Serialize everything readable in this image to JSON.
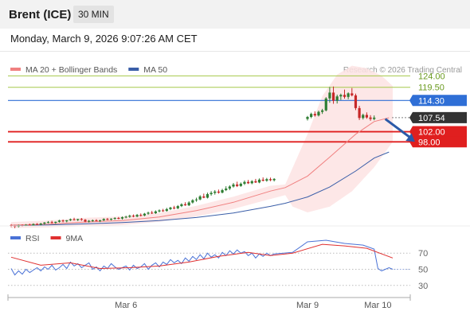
{
  "header": {
    "instrument": "Brent (ICE)",
    "timeframe": "30 MIN"
  },
  "timestamp": "Monday, March 9, 2026 9:07:26 AM CET",
  "colors": {
    "candle_up": "#2e7d32",
    "candle_down": "#c62828",
    "ma20": "#f08080",
    "ma50": "#3a5ea8",
    "bollinger_fill": "#fde3e3",
    "resistance": "#a5c94a",
    "pivot": "#2f6fd6",
    "support": "#e01f1f",
    "last_price": "#333333",
    "rsi": "#4a72d6",
    "rsi_ma": "#e03030",
    "arrow": "#2b5aa8"
  },
  "chart_data": [
    {
      "type": "candlestick",
      "legend": [
        {
          "name": "MA 20 + Bollinger Bands",
          "color": "#f08080"
        },
        {
          "name": "MA 50",
          "color": "#3a5ea8"
        }
      ],
      "credit": "Research © 2026 Trading Central",
      "ylim": [
        63,
        131
      ],
      "x_ticks": [
        {
          "label": "Mar 6",
          "index": 31
        },
        {
          "label": "Mar 9",
          "index": 80
        },
        {
          "label": "Mar 10",
          "index": 99
        }
      ],
      "levels": [
        {
          "label": "124.00",
          "value": 124.0,
          "kind": "resistance"
        },
        {
          "label": "119.50",
          "value": 119.5,
          "kind": "resistance"
        },
        {
          "label": "114.30",
          "value": 114.3,
          "kind": "pivot"
        },
        {
          "label": "107.54",
          "value": 107.54,
          "kind": "last"
        },
        {
          "label": "102.00",
          "value": 102.0,
          "kind": "support"
        },
        {
          "label": "98.00",
          "value": 98.0,
          "kind": "support"
        }
      ],
      "ohlc": [
        [
          65.2,
          65.6,
          64.4,
          64.9
        ],
        [
          64.9,
          65.3,
          64.0,
          64.6
        ],
        [
          64.6,
          65.4,
          64.3,
          65.1
        ],
        [
          65.1,
          65.5,
          64.6,
          64.9
        ],
        [
          64.9,
          65.6,
          64.7,
          65.3
        ],
        [
          65.3,
          65.8,
          64.9,
          65.1
        ],
        [
          65.1,
          65.9,
          64.9,
          65.6
        ],
        [
          65.6,
          66.0,
          65.2,
          65.4
        ],
        [
          65.4,
          66.1,
          65.1,
          65.8
        ],
        [
          65.8,
          66.4,
          65.4,
          66.2
        ],
        [
          66.2,
          66.8,
          65.9,
          66.4
        ],
        [
          66.4,
          66.9,
          65.8,
          66.1
        ],
        [
          66.1,
          66.6,
          65.7,
          66.5
        ],
        [
          66.5,
          67.3,
          66.2,
          67.0
        ],
        [
          67.0,
          67.4,
          66.3,
          66.7
        ],
        [
          66.7,
          67.2,
          66.3,
          67.1
        ],
        [
          67.1,
          67.8,
          66.8,
          67.5
        ],
        [
          67.5,
          68.1,
          67.0,
          67.2
        ],
        [
          67.2,
          67.7,
          66.8,
          67.6
        ],
        [
          67.6,
          68.0,
          66.9,
          67.3
        ],
        [
          67.3,
          67.6,
          66.3,
          66.6
        ],
        [
          66.6,
          67.2,
          66.2,
          66.9
        ],
        [
          66.9,
          67.4,
          66.5,
          67.1
        ],
        [
          67.1,
          67.5,
          66.7,
          66.9
        ],
        [
          66.9,
          67.3,
          66.4,
          67.1
        ],
        [
          67.1,
          67.9,
          66.8,
          67.6
        ],
        [
          67.6,
          68.0,
          67.1,
          67.4
        ],
        [
          67.4,
          67.9,
          67.0,
          67.7
        ],
        [
          67.7,
          68.3,
          67.3,
          68.0
        ],
        [
          68.0,
          68.4,
          67.5,
          67.8
        ],
        [
          67.8,
          68.6,
          67.4,
          68.3
        ],
        [
          68.3,
          68.9,
          67.9,
          68.5
        ],
        [
          68.5,
          69.3,
          68.1,
          68.9
        ],
        [
          68.9,
          69.4,
          68.3,
          68.6
        ],
        [
          68.6,
          69.6,
          68.3,
          69.2
        ],
        [
          69.2,
          69.8,
          68.6,
          69.0
        ],
        [
          69.0,
          70.0,
          68.7,
          69.7
        ],
        [
          69.7,
          70.5,
          69.3,
          70.1
        ],
        [
          70.1,
          70.8,
          69.6,
          69.9
        ],
        [
          69.9,
          71.0,
          69.6,
          70.6
        ],
        [
          70.6,
          71.4,
          70.2,
          71.0
        ],
        [
          71.0,
          71.6,
          70.4,
          70.8
        ],
        [
          70.8,
          72.0,
          70.5,
          71.5
        ],
        [
          71.5,
          72.4,
          71.1,
          72.1
        ],
        [
          72.1,
          72.8,
          71.4,
          71.8
        ],
        [
          71.8,
          73.1,
          71.5,
          72.7
        ],
        [
          72.7,
          73.8,
          72.3,
          73.4
        ],
        [
          73.4,
          74.2,
          72.8,
          73.0
        ],
        [
          73.0,
          74.6,
          72.7,
          74.1
        ],
        [
          74.1,
          75.4,
          73.7,
          75.0
        ],
        [
          75.0,
          76.0,
          74.4,
          75.3
        ],
        [
          75.3,
          77.0,
          75.0,
          76.5
        ],
        [
          76.5,
          77.6,
          75.8,
          76.0
        ],
        [
          76.0,
          78.0,
          75.7,
          77.4
        ],
        [
          77.4,
          78.6,
          76.8,
          77.9
        ],
        [
          77.9,
          79.0,
          77.2,
          78.4
        ],
        [
          78.4,
          79.2,
          77.6,
          78.0
        ],
        [
          78.0,
          79.5,
          77.7,
          79.0
        ],
        [
          79.0,
          80.5,
          78.6,
          79.6
        ],
        [
          79.6,
          80.9,
          79.0,
          80.4
        ],
        [
          80.4,
          81.8,
          80.0,
          81.2
        ],
        [
          81.2,
          82.3,
          80.2,
          80.6
        ],
        [
          80.6,
          82.0,
          80.3,
          81.5
        ],
        [
          81.5,
          82.8,
          81.0,
          82.2
        ],
        [
          82.2,
          83.0,
          81.4,
          81.7
        ],
        [
          81.7,
          82.9,
          81.3,
          82.5
        ],
        [
          82.5,
          83.4,
          81.8,
          82.0
        ],
        [
          82.0,
          83.6,
          81.7,
          83.1
        ],
        [
          83.1,
          84.0,
          82.4,
          82.7
        ],
        [
          82.7,
          83.8,
          82.3,
          83.3
        ],
        [
          83.3,
          83.9,
          82.5,
          82.9
        ],
        [
          82.9,
          83.7,
          82.4,
          83.4
        ],
        [
          null,
          null,
          null,
          null
        ],
        [
          null,
          null,
          null,
          null
        ],
        [
          null,
          null,
          null,
          null
        ],
        [
          null,
          null,
          null,
          null
        ],
        [
          null,
          null,
          null,
          null
        ],
        [
          null,
          null,
          null,
          null
        ],
        [
          null,
          null,
          null,
          null
        ],
        [
          null,
          null,
          null,
          null
        ],
        [
          107.0,
          108.2,
          106.4,
          107.8
        ],
        [
          107.8,
          109.5,
          107.3,
          109.0
        ],
        [
          109.0,
          110.0,
          107.9,
          108.4
        ],
        [
          108.4,
          110.3,
          108.0,
          109.8
        ],
        [
          109.8,
          111.0,
          109.0,
          110.4
        ],
        [
          110.4,
          115.6,
          110.0,
          115.1
        ],
        [
          115.1,
          119.6,
          113.4,
          117.4
        ],
        [
          117.4,
          119.8,
          113.0,
          114.2
        ],
        [
          114.2,
          116.6,
          113.1,
          115.9
        ],
        [
          115.9,
          117.0,
          114.5,
          116.5
        ],
        [
          116.5,
          118.6,
          115.0,
          115.7
        ],
        [
          115.7,
          117.5,
          114.8,
          117.1
        ],
        [
          117.1,
          119.2,
          115.9,
          116.3
        ],
        [
          116.3,
          117.0,
          110.5,
          111.3
        ],
        [
          111.3,
          112.2,
          106.6,
          107.4
        ],
        [
          107.4,
          109.1,
          106.8,
          108.6
        ],
        [
          108.6,
          109.6,
          107.1,
          107.6
        ],
        [
          107.6,
          108.5,
          106.3,
          107.0
        ],
        [
          107.0,
          108.4,
          106.5,
          107.54
        ]
      ],
      "ma20": [
        [
          0,
          65.2
        ],
        [
          10,
          65.6
        ],
        [
          20,
          66.4
        ],
        [
          30,
          67.0
        ],
        [
          40,
          68.4
        ],
        [
          50,
          70.9
        ],
        [
          60,
          74.2
        ],
        [
          70,
          78.6
        ],
        [
          74,
          80.0
        ],
        [
          80,
          84.5
        ],
        [
          86,
          92.0
        ],
        [
          93,
          101.0
        ],
        [
          98,
          106.0
        ],
        [
          102,
          107.5
        ]
      ],
      "ma50": [
        [
          0,
          65.1
        ],
        [
          10,
          65.3
        ],
        [
          20,
          65.7
        ],
        [
          30,
          66.2
        ],
        [
          40,
          67.0
        ],
        [
          50,
          68.2
        ],
        [
          60,
          70.0
        ],
        [
          70,
          72.6
        ],
        [
          74,
          73.8
        ],
        [
          80,
          76.3
        ],
        [
          86,
          80.2
        ],
        [
          93,
          86.5
        ],
        [
          98,
          91.6
        ],
        [
          102,
          94.0
        ]
      ],
      "bb_upper": [
        [
          0,
          66.4
        ],
        [
          10,
          67.0
        ],
        [
          20,
          68.1
        ],
        [
          30,
          68.6
        ],
        [
          40,
          70.0
        ],
        [
          50,
          72.8
        ],
        [
          60,
          76.4
        ],
        [
          70,
          80.7
        ],
        [
          74,
          81.2
        ],
        [
          80,
          101.0
        ],
        [
          84,
          116.0
        ],
        [
          88,
          124.5
        ],
        [
          92,
          128.0
        ],
        [
          96,
          127.0
        ],
        [
          100,
          124.0
        ],
        [
          103,
          120.0
        ]
      ],
      "bb_lower": [
        [
          0,
          64.0
        ],
        [
          10,
          64.3
        ],
        [
          20,
          64.8
        ],
        [
          30,
          65.2
        ],
        [
          40,
          66.5
        ],
        [
          50,
          68.6
        ],
        [
          60,
          71.6
        ],
        [
          70,
          75.5
        ],
        [
          74,
          77.0
        ],
        [
          76,
          72.5
        ],
        [
          80,
          70.2
        ],
        [
          86,
          72.5
        ],
        [
          92,
          78.5
        ],
        [
          98,
          88.0
        ],
        [
          103,
          98.0
        ]
      ],
      "forecast_arrow": {
        "from": [
          101,
          107.0
        ],
        "to": [
          109,
          98.0
        ]
      }
    },
    {
      "type": "line",
      "legend": [
        {
          "name": "RSI",
          "color": "#4a72d6"
        },
        {
          "name": "9MA",
          "color": "#e03030"
        }
      ],
      "ylim": [
        15,
        85
      ],
      "levels": [
        {
          "label": "70",
          "value": 70
        },
        {
          "label": "50",
          "value": 50
        },
        {
          "label": "30",
          "value": 30
        }
      ],
      "rsi": [
        [
          0,
          51
        ],
        [
          1,
          43
        ],
        [
          2,
          48
        ],
        [
          3,
          44
        ],
        [
          4,
          50
        ],
        [
          5,
          46
        ],
        [
          6,
          49
        ],
        [
          7,
          52
        ],
        [
          8,
          48
        ],
        [
          9,
          53
        ],
        [
          10,
          50
        ],
        [
          11,
          55
        ],
        [
          12,
          49
        ],
        [
          13,
          52
        ],
        [
          14,
          56
        ],
        [
          15,
          51
        ],
        [
          16,
          59
        ],
        [
          17,
          54
        ],
        [
          18,
          57
        ],
        [
          19,
          52
        ],
        [
          20,
          55
        ],
        [
          21,
          58
        ],
        [
          22,
          50
        ],
        [
          23,
          53
        ],
        [
          24,
          48
        ],
        [
          25,
          54
        ],
        [
          26,
          51
        ],
        [
          27,
          57
        ],
        [
          28,
          53
        ],
        [
          29,
          50
        ],
        [
          30,
          52
        ],
        [
          31,
          54
        ],
        [
          32,
          49
        ],
        [
          33,
          55
        ],
        [
          34,
          51
        ],
        [
          35,
          53
        ],
        [
          36,
          57
        ],
        [
          37,
          50
        ],
        [
          38,
          55
        ],
        [
          39,
          58
        ],
        [
          40,
          53
        ],
        [
          41,
          59
        ],
        [
          42,
          56
        ],
        [
          43,
          62
        ],
        [
          44,
          58
        ],
        [
          45,
          61
        ],
        [
          46,
          57
        ],
        [
          47,
          64
        ],
        [
          48,
          60
        ],
        [
          49,
          66
        ],
        [
          50,
          62
        ],
        [
          51,
          68
        ],
        [
          52,
          63
        ],
        [
          53,
          70
        ],
        [
          54,
          65
        ],
        [
          55,
          68
        ],
        [
          56,
          64
        ],
        [
          57,
          71
        ],
        [
          58,
          67
        ],
        [
          59,
          73
        ],
        [
          60,
          69
        ],
        [
          61,
          74
        ],
        [
          62,
          70
        ],
        [
          63,
          72
        ],
        [
          64,
          67
        ],
        [
          65,
          70
        ],
        [
          66,
          64
        ],
        [
          67,
          69
        ],
        [
          68,
          66
        ],
        [
          69,
          70
        ],
        [
          70,
          67
        ],
        [
          71,
          69
        ],
        [
          76,
          71
        ],
        [
          80,
          84
        ],
        [
          85,
          86
        ],
        [
          90,
          82
        ],
        [
          95,
          80
        ],
        [
          98,
          75
        ],
        [
          99,
          51
        ],
        [
          100,
          48
        ],
        [
          102,
          52
        ],
        [
          103,
          50
        ]
      ],
      "rsi_ma": [
        [
          0,
          65
        ],
        [
          8,
          55
        ],
        [
          16,
          58
        ],
        [
          24,
          51
        ],
        [
          32,
          52
        ],
        [
          40,
          54
        ],
        [
          48,
          59
        ],
        [
          56,
          66
        ],
        [
          64,
          71
        ],
        [
          70,
          67
        ],
        [
          76,
          70
        ],
        [
          84,
          81
        ],
        [
          90,
          79
        ],
        [
          96,
          76
        ],
        [
          103,
          64
        ]
      ]
    }
  ]
}
